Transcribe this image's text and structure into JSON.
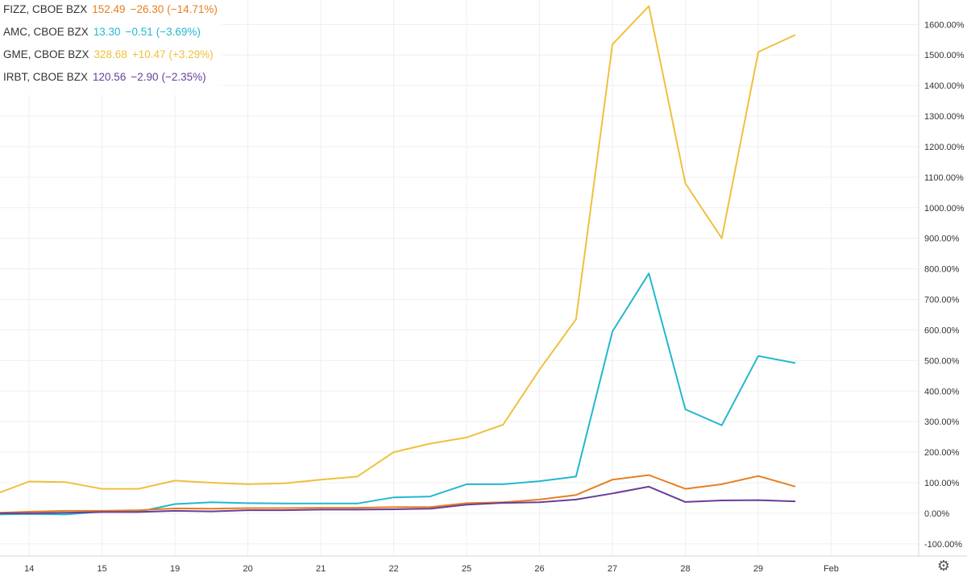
{
  "legend": [
    {
      "symbol": "FIZZ, CBOE BZX",
      "value": "152.49",
      "change": "−26.30",
      "percent": "(−14.71%)",
      "color": "#e67e22"
    },
    {
      "symbol": "AMC, CBOE BZX",
      "value": "13.30",
      "change": "−0.51",
      "percent": "(−3.69%)",
      "color": "#22b8cf"
    },
    {
      "symbol": "GME, CBOE BZX",
      "value": "328.68",
      "change": "+10.47",
      "percent": "(+3.29%)",
      "color": "#f0c03c"
    },
    {
      "symbol": "IRBT, CBOE BZX",
      "value": "120.56",
      "change": "−2.90",
      "percent": "(−2.35%)",
      "color": "#6a3d9a"
    }
  ],
  "settings_icon": "gear-icon",
  "chart_data": {
    "type": "line",
    "x_ticks": [
      "14",
      "15",
      "19",
      "20",
      "21",
      "22",
      "25",
      "26",
      "27",
      "28",
      "29",
      "Feb"
    ],
    "y_ticks": [
      "-100.00%",
      "0.00%",
      "100.00%",
      "200.00%",
      "300.00%",
      "400.00%",
      "500.00%",
      "600.00%",
      "700.00%",
      "800.00%",
      "900.00%",
      "1000.00%",
      "1100.00%",
      "1200.00%",
      "1300.00%",
      "1400.00%",
      "1500.00%",
      "1600.00%"
    ],
    "ylim": [
      -140,
      1680
    ],
    "xlim": [
      -0.4,
      12.2
    ],
    "grid": true,
    "legend_position": "top-left",
    "series": [
      {
        "name": "GME, CBOE BZX",
        "color": "#f0c03c",
        "x": [
          -0.4,
          0,
          0.5,
          1,
          1.5,
          2,
          2.5,
          3,
          3.5,
          4,
          4.5,
          5,
          5.5,
          6,
          6.5,
          7,
          7.5,
          8,
          8.5,
          9,
          9.5,
          10,
          10.5
        ],
        "y": [
          68,
          104,
          102,
          80,
          80,
          107,
          100,
          95,
          98,
          110,
          120,
          200,
          228,
          248,
          290,
          470,
          635,
          1535,
          1660,
          1080,
          900,
          1510,
          1565
        ]
      },
      {
        "name": "AMC, CBOE BZX",
        "color": "#22b8cf",
        "x": [
          -0.4,
          0,
          0.5,
          1,
          1.5,
          2,
          2.5,
          3,
          3.5,
          4,
          4.5,
          5,
          5.5,
          6,
          6.5,
          7,
          7.5,
          8,
          8.5,
          9,
          9.5,
          10,
          10.5
        ],
        "y": [
          -4,
          -2,
          -4,
          5,
          5,
          30,
          36,
          33,
          32,
          32,
          32,
          52,
          55,
          95,
          95,
          105,
          120,
          595,
          785,
          340,
          288,
          515,
          492
        ]
      },
      {
        "name": "FIZZ, CBOE BZX",
        "color": "#e67e22",
        "x": [
          -0.4,
          0,
          0.5,
          1,
          1.5,
          2,
          2.5,
          3,
          3.5,
          4,
          4.5,
          5,
          5.5,
          6,
          6.5,
          7,
          7.5,
          8,
          8.5,
          9,
          9.5,
          10,
          10.5
        ],
        "y": [
          2,
          5,
          8,
          8,
          10,
          16,
          15,
          17,
          17,
          18,
          18,
          20,
          20,
          33,
          36,
          45,
          60,
          110,
          125,
          80,
          95,
          122,
          88
        ]
      },
      {
        "name": "IRBT, CBOE BZX",
        "color": "#6a3d9a",
        "x": [
          -0.4,
          0,
          0.5,
          1,
          1.5,
          2,
          2.5,
          3,
          3.5,
          4,
          4.5,
          5,
          5.5,
          6,
          6.5,
          7,
          7.5,
          8,
          8.5,
          9,
          9.5,
          10,
          10.5
        ],
        "y": [
          0,
          0,
          2,
          4,
          4,
          8,
          6,
          10,
          10,
          12,
          12,
          13,
          15,
          28,
          34,
          36,
          45,
          65,
          87,
          37,
          42,
          43,
          39
        ]
      }
    ]
  }
}
